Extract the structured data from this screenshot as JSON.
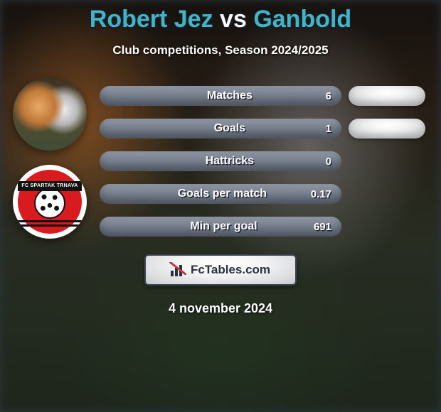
{
  "title": {
    "player1": "Robert Jez",
    "vs": "vs",
    "player2": "Ganbold",
    "player1_color": "#3fb6c7",
    "vs_color": "#ffffff",
    "player2_color": "#3fb6c7"
  },
  "subtitle": "Club competitions, Season 2024/2025",
  "avatars": {
    "crest_text": "FC SPARTAK TRNAVA"
  },
  "brand": {
    "text": "FcTables.com"
  },
  "date": "4 november 2024",
  "bar_gradient": {
    "from": "#8d95a2",
    "to": "#656e7d"
  },
  "rows": [
    {
      "label": "Matches",
      "left_value": "6",
      "right_pill": true
    },
    {
      "label": "Goals",
      "left_value": "1",
      "right_pill": true
    },
    {
      "label": "Hattricks",
      "left_value": "0",
      "right_pill": false
    },
    {
      "label": "Goals per match",
      "left_value": "0.17",
      "right_pill": false
    },
    {
      "label": "Min per goal",
      "left_value": "691",
      "right_pill": false
    }
  ]
}
